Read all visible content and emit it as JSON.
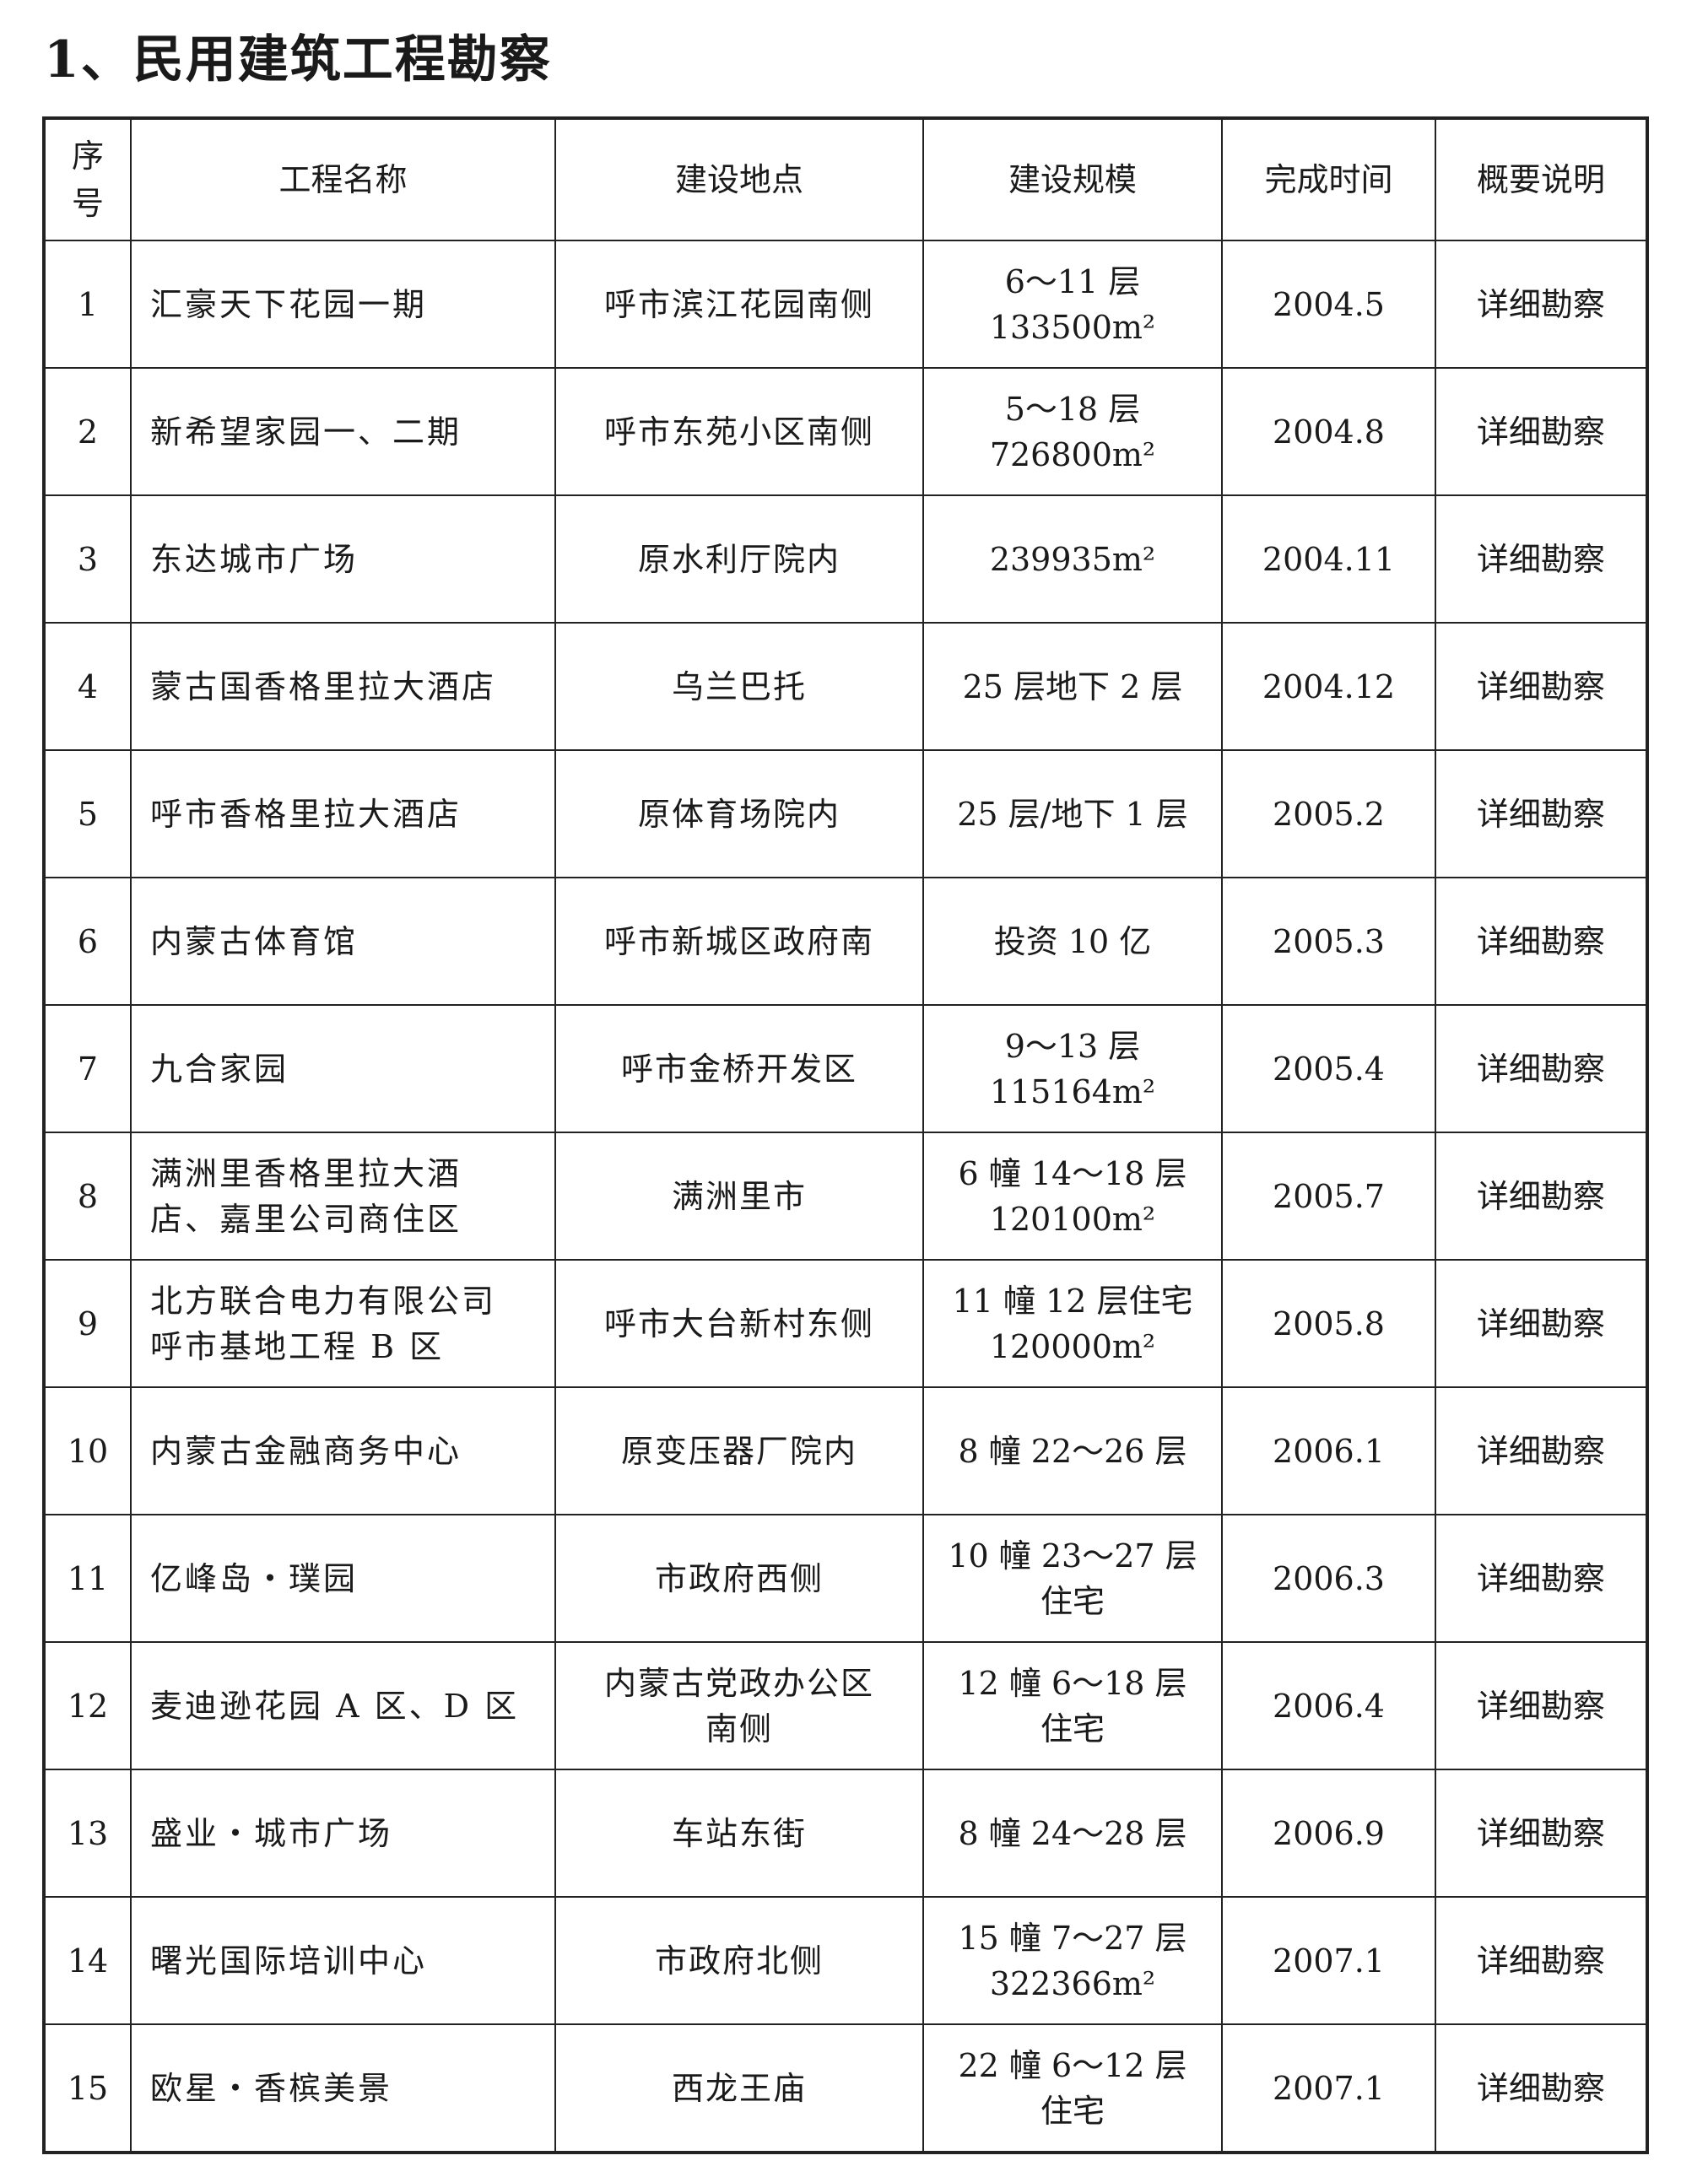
{
  "title": "1、民用建筑工程勘察",
  "table": {
    "headers": [
      "序号",
      "工程名称",
      "建设地点",
      "建设规模",
      "完成时间",
      "概要说明"
    ],
    "rows": [
      {
        "no": "1",
        "name": [
          "汇豪天下花园一期"
        ],
        "location": [
          "呼市滨江花园南侧"
        ],
        "scale": [
          "6～11 层",
          "133500m²"
        ],
        "date": "2004.5",
        "note": "详细勘察"
      },
      {
        "no": "2",
        "name": [
          "新希望家园一、二期"
        ],
        "location": [
          "呼市东苑小区南侧"
        ],
        "scale": [
          "5～18 层",
          "726800m²"
        ],
        "date": "2004.8",
        "note": "详细勘察"
      },
      {
        "no": "3",
        "name": [
          "东达城市广场"
        ],
        "location": [
          "原水利厅院内"
        ],
        "scale": [
          "239935m²"
        ],
        "date": "2004.11",
        "note": "详细勘察"
      },
      {
        "no": "4",
        "name": [
          "蒙古国香格里拉大酒店"
        ],
        "location": [
          "乌兰巴托"
        ],
        "scale": [
          "25 层地下 2 层"
        ],
        "date": "2004.12",
        "note": "详细勘察"
      },
      {
        "no": "5",
        "name": [
          "呼市香格里拉大酒店"
        ],
        "location": [
          "原体育场院内"
        ],
        "scale": [
          "25 层/地下 1 层"
        ],
        "date": "2005.2",
        "note": "详细勘察"
      },
      {
        "no": "6",
        "name": [
          "内蒙古体育馆"
        ],
        "location": [
          "呼市新城区政府南"
        ],
        "scale": [
          "投资 10 亿"
        ],
        "date": "2005.3",
        "note": "详细勘察"
      },
      {
        "no": "7",
        "name": [
          "九合家园"
        ],
        "location": [
          "呼市金桥开发区"
        ],
        "scale": [
          "9～13 层",
          "115164m²"
        ],
        "date": "2005.4",
        "note": "详细勘察"
      },
      {
        "no": "8",
        "name": [
          "满洲里香格里拉大酒",
          "店、嘉里公司商住区"
        ],
        "location": [
          "满洲里市"
        ],
        "scale": [
          "6 幢 14～18 层",
          "120100m²"
        ],
        "date": "2005.7",
        "note": "详细勘察"
      },
      {
        "no": "9",
        "name": [
          "北方联合电力有限公司",
          "呼市基地工程 B 区"
        ],
        "location": [
          "呼市大台新村东侧"
        ],
        "scale": [
          "11 幢 12 层住宅",
          "120000m²"
        ],
        "date": "2005.8",
        "note": "详细勘察"
      },
      {
        "no": "10",
        "name": [
          "内蒙古金融商务中心"
        ],
        "location": [
          "原变压器厂院内"
        ],
        "scale": [
          "8 幢 22～26 层"
        ],
        "date": "2006.1",
        "note": "详细勘察"
      },
      {
        "no": "11",
        "name": [
          "亿峰岛・璞园"
        ],
        "location": [
          "市政府西侧"
        ],
        "scale": [
          "10 幢 23～27 层",
          "住宅"
        ],
        "date": "2006.3",
        "note": "详细勘察"
      },
      {
        "no": "12",
        "name": [
          "麦迪逊花园 A 区、D 区"
        ],
        "location": [
          "内蒙古党政办公区",
          "南侧"
        ],
        "scale": [
          "12 幢 6～18 层",
          "住宅"
        ],
        "date": "2006.4",
        "note": "详细勘察"
      },
      {
        "no": "13",
        "name": [
          "盛业・城市广场"
        ],
        "location": [
          "车站东街"
        ],
        "scale": [
          "8 幢 24～28 层"
        ],
        "date": "2006.9",
        "note": "详细勘察"
      },
      {
        "no": "14",
        "name": [
          "曙光国际培训中心"
        ],
        "location": [
          "市政府北侧"
        ],
        "scale": [
          "15 幢 7～27 层",
          "322366m²"
        ],
        "date": "2007.1",
        "note": "详细勘察"
      },
      {
        "no": "15",
        "name": [
          "欧星・香槟美景"
        ],
        "location": [
          "西龙王庙"
        ],
        "scale": [
          "22 幢 6～12 层",
          "住宅"
        ],
        "date": "2007.1",
        "note": "详细勘察"
      }
    ]
  }
}
